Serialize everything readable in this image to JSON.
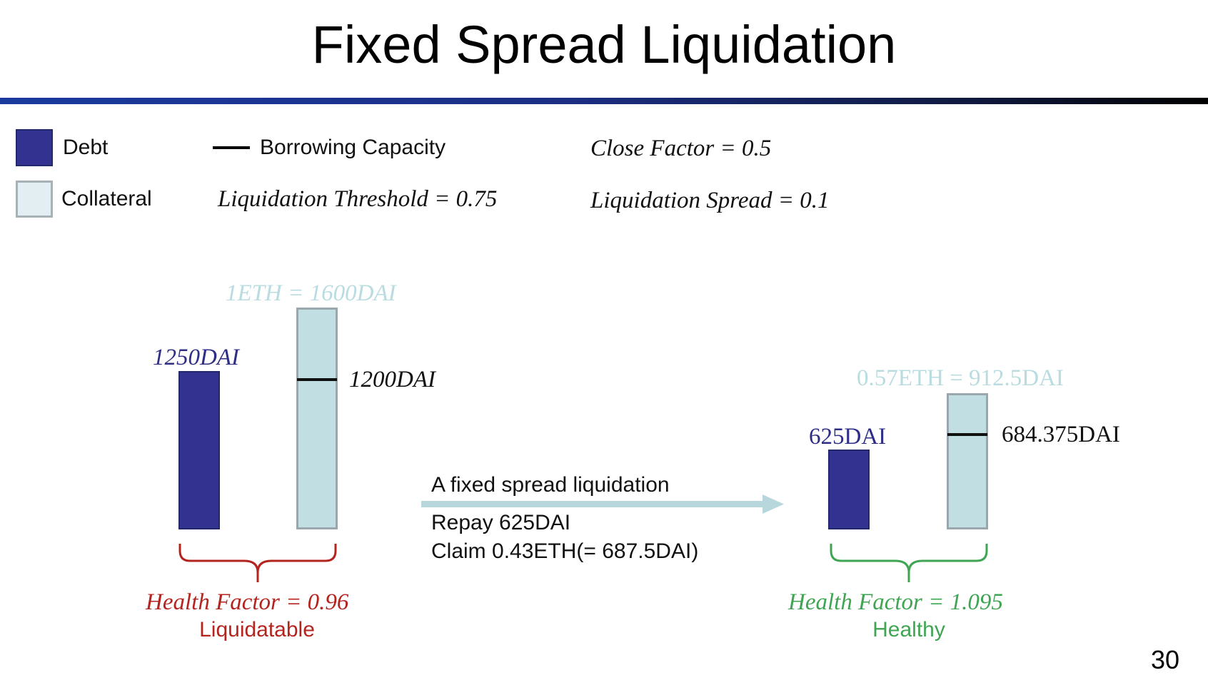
{
  "slide": {
    "title": "Fixed Spread Liquidation",
    "page_number": "30"
  },
  "legend": {
    "debt": "Debt",
    "collateral": "Collateral",
    "capacity": "Borrowing Capacity"
  },
  "params": {
    "close_factor": "Close Factor = 0.5",
    "liquidation_threshold": "Liquidation Threshold = 0.75",
    "liquidation_spread": "Liquidation Spread = 0.1"
  },
  "before": {
    "collateral_label": "1ETH = 1600DAI",
    "debt_label": "1250DAI",
    "capacity_label": "1200DAI",
    "health_factor": "Health Factor = 0.96",
    "status": "Liquidatable"
  },
  "action": {
    "caption": "A fixed spread liquidation",
    "repay": "Repay 625DAI",
    "claim": "Claim 0.43ETH(= 687.5DAI)"
  },
  "after": {
    "collateral_label": "0.57ETH = 912.5DAI",
    "debt_label": "625DAI",
    "capacity_label": "684.375DAI",
    "health_factor": "Health Factor = 1.095",
    "status": "Healthy"
  },
  "colors": {
    "debt": "#343290",
    "collateral": "#c1dfe3",
    "unhealthy": "#b3241e",
    "healthy": "#3fa553",
    "arrow": "#b7d7dd"
  }
}
